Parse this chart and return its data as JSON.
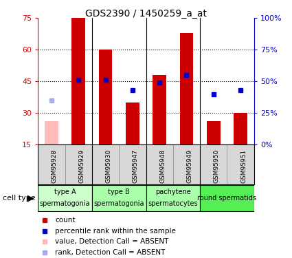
{
  "title": "GDS2390 / 1450259_a_at",
  "samples": [
    "GSM95928",
    "GSM95929",
    "GSM95930",
    "GSM95947",
    "GSM95948",
    "GSM95949",
    "GSM95950",
    "GSM95951"
  ],
  "counts": [
    26,
    75,
    60,
    35,
    48,
    68,
    26,
    30
  ],
  "is_absent": [
    true,
    false,
    false,
    false,
    false,
    false,
    false,
    false
  ],
  "ranks": [
    35,
    51,
    51,
    43,
    49,
    55,
    40,
    43
  ],
  "rank_is_absent": [
    true,
    false,
    false,
    false,
    false,
    false,
    false,
    false
  ],
  "bars_present_color": "#cc0000",
  "bars_absent_color": "#ffbbbb",
  "rank_present_color": "#0000cc",
  "rank_absent_color": "#aaaaee",
  "ylim_left": [
    15,
    75
  ],
  "ylim_right": [
    0,
    100
  ],
  "yticks_left": [
    15,
    30,
    45,
    60,
    75
  ],
  "yticks_right": [
    0,
    25,
    50,
    75,
    100
  ],
  "ytick_labels_right": [
    "0%",
    "25%",
    "50%",
    "75%",
    "100%"
  ],
  "grid_yticks": [
    30,
    45,
    60
  ],
  "group_ranges": [
    [
      0,
      2
    ],
    [
      2,
      4
    ],
    [
      4,
      6
    ],
    [
      6,
      8
    ]
  ],
  "group_texts_line1": [
    "type A",
    "type B",
    "pachytene",
    "round spermatids"
  ],
  "group_texts_line2": [
    "spermatogonia",
    "spermatogonia",
    "spermatocytes",
    ""
  ],
  "group_colors": [
    "#ccffcc",
    "#aaffaa",
    "#aaffaa",
    "#55ee55"
  ],
  "bar_width": 0.5,
  "left_axis_color": "#cc0000",
  "right_axis_color": "#0000cc",
  "legend_items": [
    {
      "color": "#cc0000",
      "label": "count"
    },
    {
      "color": "#0000cc",
      "label": "percentile rank within the sample"
    },
    {
      "color": "#ffbbbb",
      "label": "value, Detection Call = ABSENT"
    },
    {
      "color": "#aaaaee",
      "label": "rank, Detection Call = ABSENT"
    }
  ]
}
